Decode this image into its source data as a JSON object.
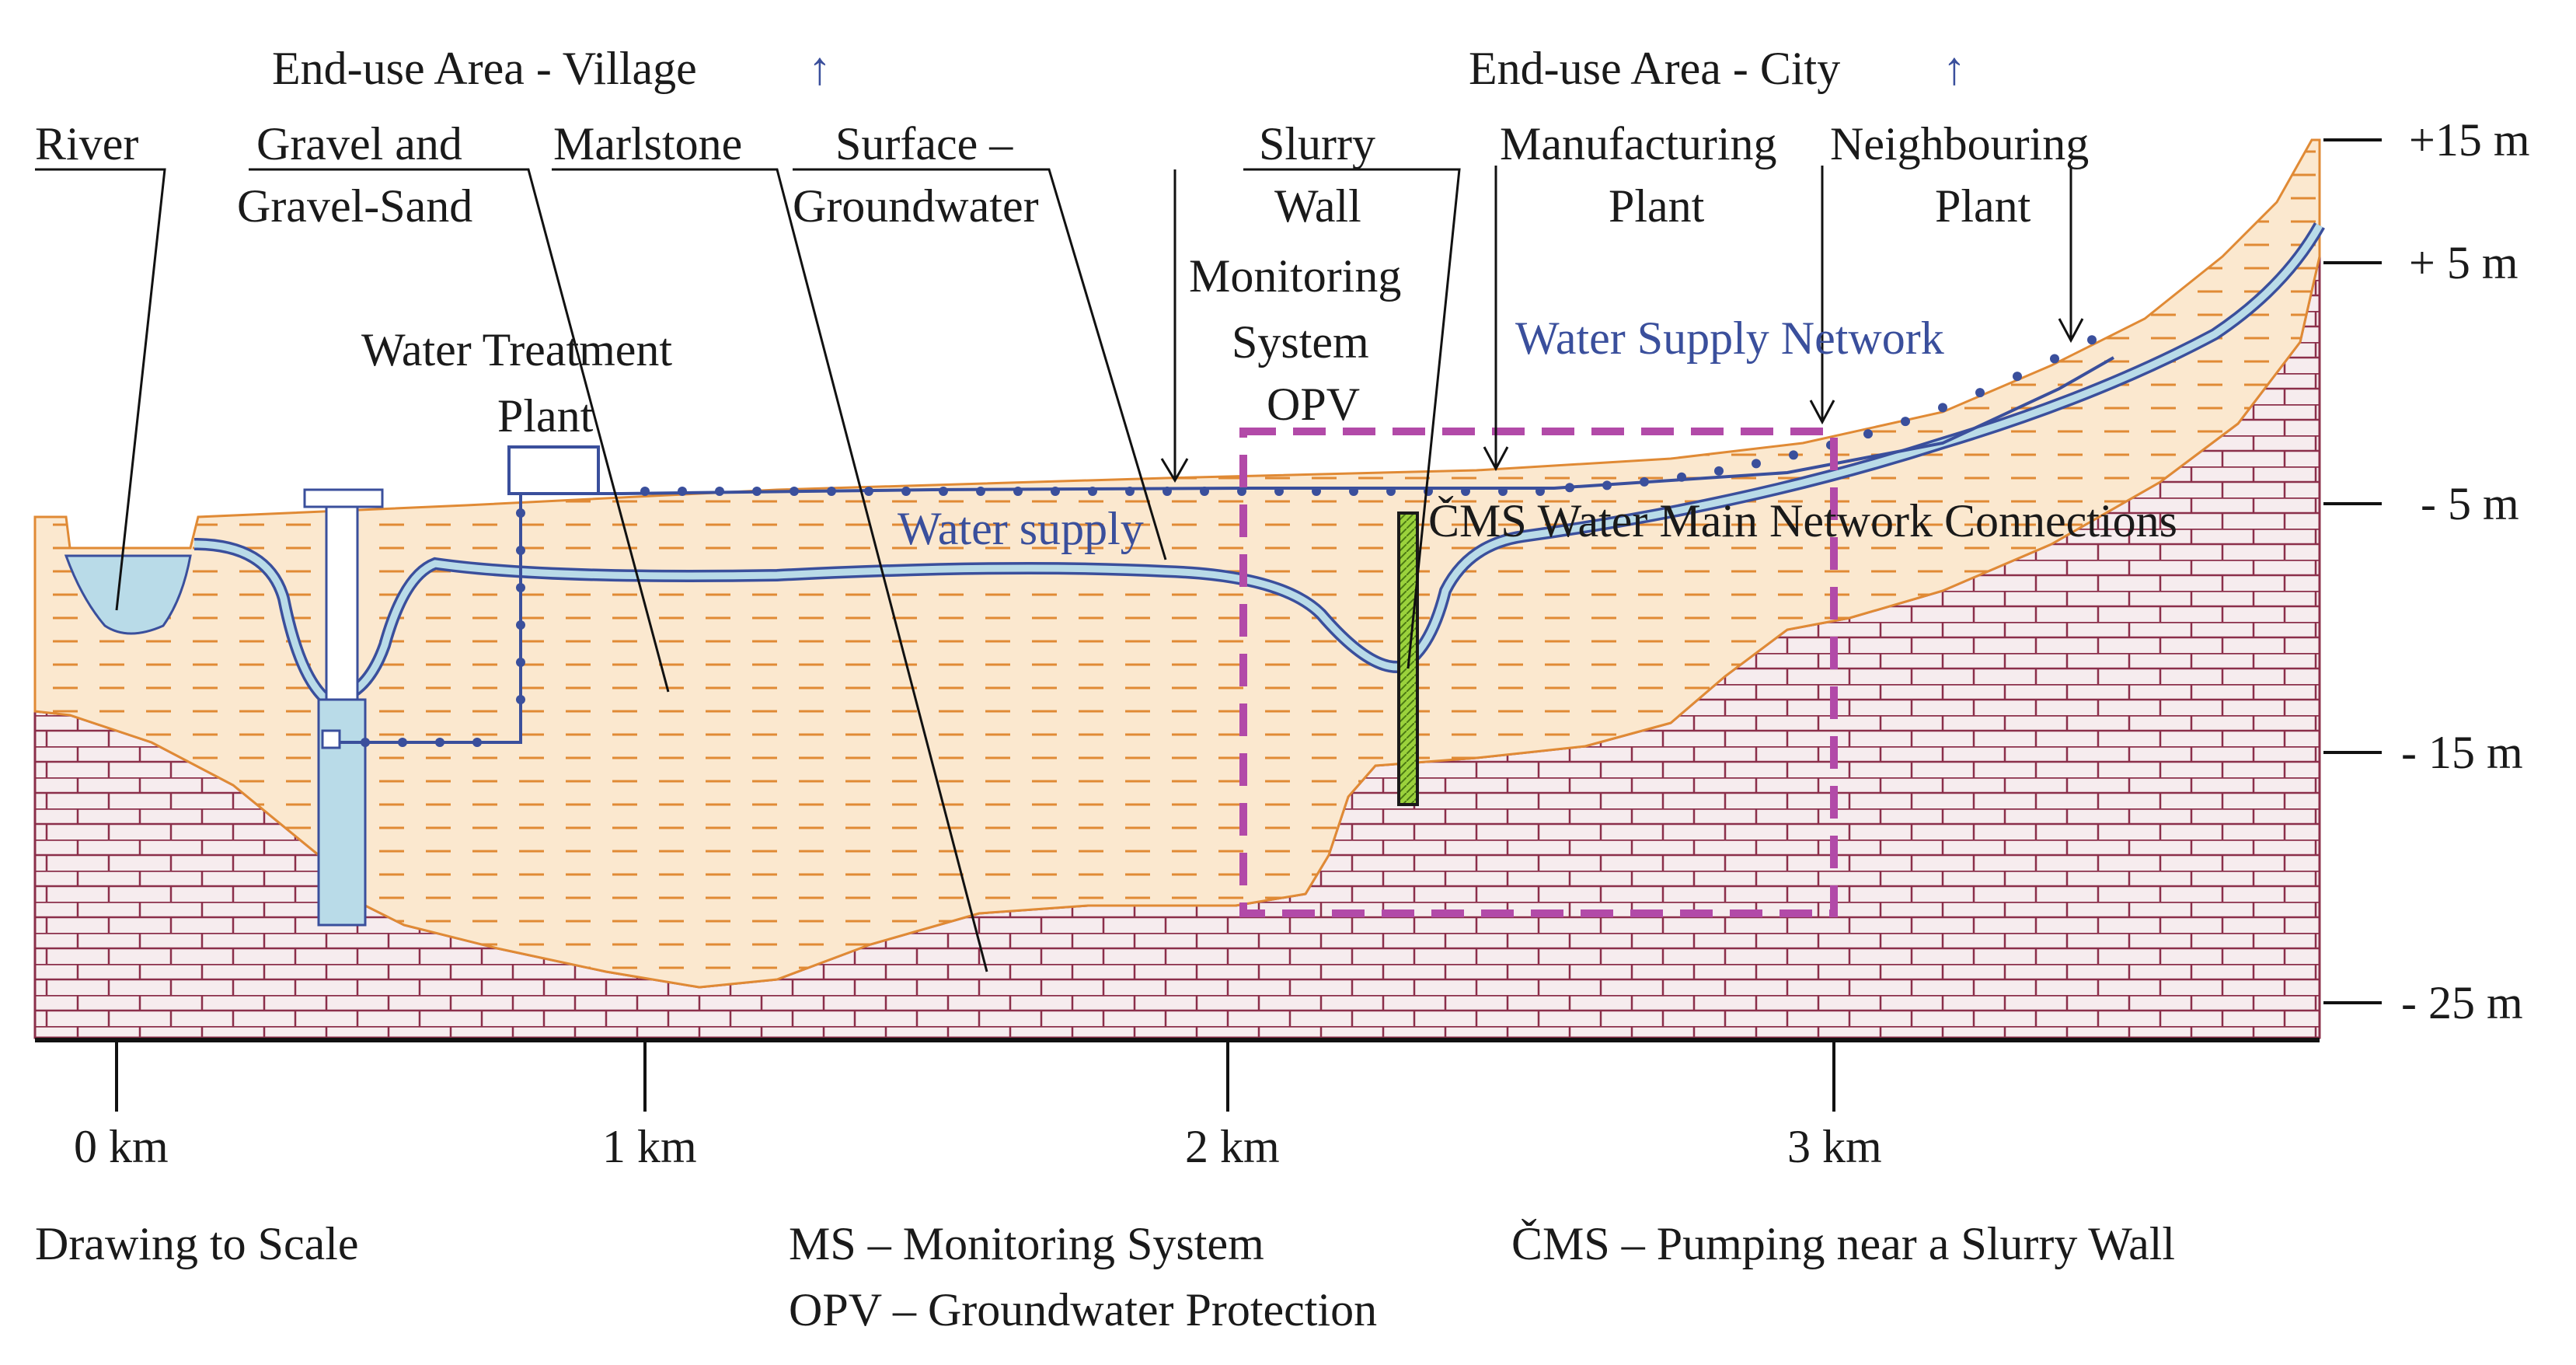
{
  "labels": {
    "river": "River",
    "gravel_line1": "Gravel and",
    "gravel_line2": "Gravel-Sand",
    "marlstone": "Marlstone",
    "surface_line1": "Surface –",
    "surface_line2": "Groundwater",
    "slurry_line1": "Slurry",
    "slurry_line2": "Wall",
    "monitoring_line1": "Monitoring",
    "monitoring_line2": "System",
    "monitoring_line3": "OPV",
    "manufacturing_line1": "Manufacturing",
    "manufacturing_line2": "Plant",
    "neighbouring_line1": "Neighbouring",
    "neighbouring_line2": "Plant",
    "end_use_village": "End-use Area - Village",
    "end_use_city": "End-use Area - City",
    "up_arrow": "↑",
    "water_treatment_line1": "Water Treatment",
    "water_treatment_line2": "Plant",
    "water_supply_network": "Water Supply Network",
    "water_supply": "Water supply",
    "cms_connections": "ČMS Water Main Network Connections"
  },
  "elevation_axis": [
    "+15 m",
    "+ 5 m",
    "- 5 m",
    "- 15 m",
    "- 25 m"
  ],
  "distance_axis": [
    "0 km",
    "1 km",
    "2 km",
    "3 km"
  ],
  "footer": {
    "scale_note": "Drawing to Scale",
    "ms_note": "MS – Monitoring System",
    "opv_note": "OPV – Groundwater Protection",
    "cms_note": "ČMS – Pumping near a Slurry Wall"
  },
  "colors": {
    "bedrock_fill": "#f6ecee",
    "bedrock_line": "#8b2f4a",
    "aquifer_fill": "#fbe8cf",
    "aquifer_dash": "#e08a35",
    "water": "#b9dbe8",
    "water_line": "#3a4f9c",
    "dashed_box": "#b24aa8",
    "slurry_wall": "#9bd23c"
  }
}
